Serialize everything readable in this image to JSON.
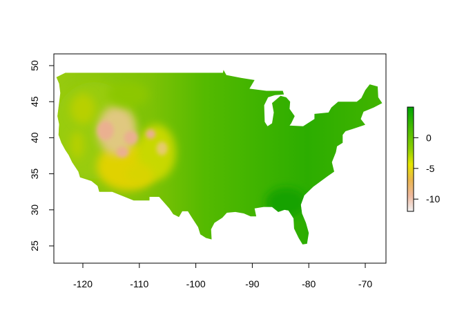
{
  "map": {
    "type": "raster",
    "xlim": [
      -125,
      -66
    ],
    "ylim": [
      22,
      52
    ],
    "x_ticks": [
      "-120",
      "-110",
      "-100",
      "-90",
      "-80",
      "-70"
    ],
    "x_tick_values": [
      -120,
      -110,
      -100,
      -90,
      -80,
      -70
    ],
    "y_ticks": [
      "25",
      "30",
      "35",
      "40",
      "45",
      "50"
    ],
    "y_tick_values": [
      25,
      30,
      35,
      40,
      45,
      50
    ],
    "legend": {
      "range": [
        -12,
        5
      ],
      "ticks": [
        "0",
        "-5",
        "-10"
      ],
      "tick_values": [
        0,
        -5,
        -10
      ],
      "colors": [
        "#00A600",
        "#E6E600",
        "#EAB64E",
        "#EEB99F",
        "#F2F2F2"
      ]
    },
    "fill_colors": {
      "east": "#22AA00",
      "central": "#55BB00",
      "west": "#99CC10",
      "desert": "#E0D200",
      "high_desert": "#EAB090"
    }
  }
}
